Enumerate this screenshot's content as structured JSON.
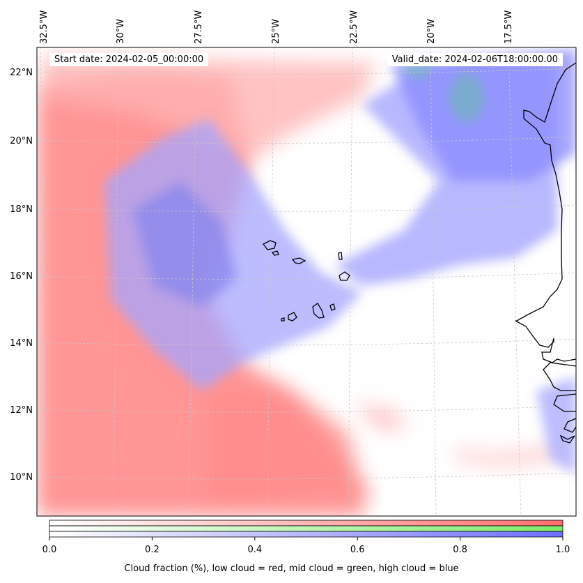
{
  "header": {
    "start_date": "Start date: 2024-02-05_00:00:00",
    "valid_date": "Valid_date: 2024-02-06T18:00:00.00"
  },
  "axes": {
    "longitude_labels": [
      "32.5°W",
      "30°W",
      "27.5°W",
      "25°W",
      "22.5°W",
      "20°W",
      "17.5°W"
    ],
    "latitude_labels": [
      "22°N",
      "20°N",
      "18°N",
      "16°N",
      "14°N",
      "12°N",
      "10°N"
    ]
  },
  "colorbar": {
    "title": "Cloud fraction (%), low cloud = red, mid cloud = green, high cloud = blue",
    "tick_labels": [
      "0.0",
      "0.2",
      "0.4",
      "0.6",
      "0.8",
      "1.0"
    ],
    "range": [
      0.0,
      1.0
    ],
    "bands": [
      {
        "name": "low cloud",
        "color": "#ff6e6e"
      },
      {
        "name": "mid cloud",
        "color": "#7cec6a"
      },
      {
        "name": "high cloud",
        "color": "#6e6eff"
      }
    ]
  },
  "colors": {
    "low_cloud": "#ff8080",
    "mid_cloud": "#6fd0a0",
    "high_cloud": "#8c8cff",
    "coastline": "#000000",
    "gridline": "#c8c8c8"
  }
}
